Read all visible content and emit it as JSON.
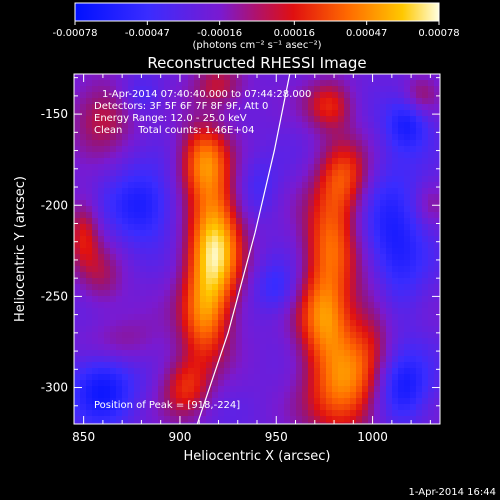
{
  "chart_data": {
    "type": "heatmap",
    "title": "Reconstructed RHESSI Image",
    "xlabel": "Heliocentric X (arcsec)",
    "ylabel": "Heliocentric Y (arcsec)",
    "xlim": [
      845,
      1035
    ],
    "ylim": [
      -320,
      -128
    ],
    "xticks": [
      850,
      900,
      950,
      1000
    ],
    "xtick_labels": [
      "850",
      "900",
      "950",
      "1000"
    ],
    "yticks": [
      -150,
      -200,
      -250,
      -300
    ],
    "ytick_labels": [
      "-150",
      "-200",
      "-250",
      "-300"
    ],
    "colorbar": {
      "ticks": [
        -0.00078,
        -0.00047,
        -0.00016,
        0.00016,
        0.00047,
        0.00078
      ],
      "tick_labels": [
        "-0.00078",
        "-0.00047",
        "-0.00016",
        "0.00016",
        "0.00047",
        "0.00078"
      ],
      "unit_label": "(photons cm⁻² s⁻¹ asec⁻²)",
      "range": [
        -0.00078,
        0.00078
      ]
    },
    "info_lines": [
      "1-Apr-2014 07:40:40.000 to 07:44:28.000",
      "Detectors: 3F 5F 6F 7F 8F 9F, Att 0",
      "Energy Range: 12.0 - 25.0 keV",
      "Clean     Total counts: 1.46E+04"
    ],
    "peak_label": "Position of Peak = [918,-224]",
    "peak": [
      918,
      -224
    ],
    "limb_arc": [
      [
        909,
        -320
      ],
      [
        925,
        -270
      ],
      [
        939,
        -215
      ],
      [
        949,
        -170
      ],
      [
        957,
        -128
      ]
    ],
    "sources": [
      {
        "x": 918,
        "y": -222,
        "sx": 10,
        "sy": 26,
        "amp": 1.15
      },
      {
        "x": 912,
        "y": -175,
        "sx": 9,
        "sy": 15,
        "amp": 0.7
      },
      {
        "x": 912,
        "y": -262,
        "sx": 9,
        "sy": 18,
        "amp": 0.65
      },
      {
        "x": 903,
        "y": -300,
        "sx": 9,
        "sy": 12,
        "amp": 0.55
      },
      {
        "x": 920,
        "y": -135,
        "sx": 10,
        "sy": 9,
        "amp": 0.45
      },
      {
        "x": 985,
        "y": -300,
        "sx": 14,
        "sy": 20,
        "amp": 0.85
      },
      {
        "x": 975,
        "y": -262,
        "sx": 10,
        "sy": 17,
        "amp": 0.75
      },
      {
        "x": 978,
        "y": -222,
        "sx": 10,
        "sy": 20,
        "amp": 0.75
      },
      {
        "x": 985,
        "y": -185,
        "sx": 10,
        "sy": 15,
        "amp": 0.65
      },
      {
        "x": 978,
        "y": -145,
        "sx": 9,
        "sy": 10,
        "amp": 0.55
      },
      {
        "x": 1000,
        "y": -260,
        "sx": 9,
        "sy": 22,
        "amp": 0.4
      },
      {
        "x": 860,
        "y": -150,
        "sx": 12,
        "sy": 14,
        "amp": 0.45
      },
      {
        "x": 850,
        "y": -215,
        "sx": 6,
        "sy": 14,
        "amp": 0.5
      },
      {
        "x": 860,
        "y": -240,
        "sx": 8,
        "sy": 12,
        "amp": 0.3
      },
      {
        "x": 870,
        "y": -275,
        "sx": 14,
        "sy": 10,
        "amp": 0.25
      },
      {
        "x": 1025,
        "y": -140,
        "sx": 6,
        "sy": 8,
        "amp": 0.3
      },
      {
        "x": 1030,
        "y": -200,
        "sx": 6,
        "sy": 8,
        "amp": 0.2
      }
    ],
    "negatives": [
      {
        "x": 880,
        "y": -200,
        "sx": 12,
        "sy": 14,
        "amp": 0.55
      },
      {
        "x": 860,
        "y": -300,
        "sx": 12,
        "sy": 14,
        "amp": 0.6
      },
      {
        "x": 940,
        "y": -190,
        "sx": 8,
        "sy": 12,
        "amp": 0.25
      },
      {
        "x": 950,
        "y": -245,
        "sx": 8,
        "sy": 10,
        "amp": 0.35
      },
      {
        "x": 1010,
        "y": -220,
        "sx": 12,
        "sy": 30,
        "amp": 0.55
      },
      {
        "x": 1015,
        "y": -300,
        "sx": 10,
        "sy": 14,
        "amp": 0.6
      },
      {
        "x": 1018,
        "y": -155,
        "sx": 8,
        "sy": 10,
        "amp": 0.5
      },
      {
        "x": 880,
        "y": -140,
        "sx": 8,
        "sy": 8,
        "amp": 0.3
      }
    ],
    "grid": false
  },
  "footer": {
    "timestamp": "1-Apr-2014 16:44"
  }
}
